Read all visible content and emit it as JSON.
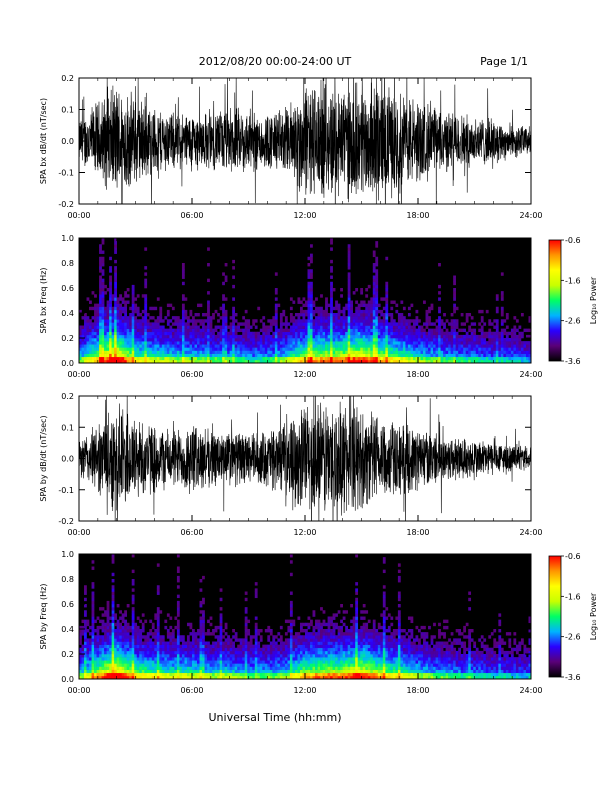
{
  "header": {
    "title": "2012/08/20  00:00-24:00 UT",
    "page_label": "Page 1/1"
  },
  "footer": {
    "xlabel": "Universal Time (hh:mm)"
  },
  "chart_data": [
    {
      "type": "line",
      "ylabel": "SPA bx dB/dt (nT/sec)",
      "xlim": [
        "00:00",
        "24:00"
      ],
      "ylim": [
        -0.2,
        0.2
      ],
      "xticks": [
        "00:00",
        "06:00",
        "12:00",
        "18:00",
        "24:00"
      ],
      "yticks": [
        "-0.2",
        "-0.1",
        "0.0",
        "0.1",
        "0.2"
      ],
      "envelope": {
        "hours": [
          0,
          1,
          2,
          3,
          4,
          5,
          6,
          7,
          8,
          9,
          10,
          11,
          12,
          13,
          14,
          15,
          16,
          17,
          18,
          19,
          20,
          21,
          22,
          23,
          24
        ],
        "amplitude_nT_per_sec": [
          0.08,
          0.14,
          0.2,
          0.16,
          0.12,
          0.1,
          0.1,
          0.1,
          0.12,
          0.11,
          0.1,
          0.12,
          0.2,
          0.2,
          0.2,
          0.2,
          0.2,
          0.18,
          0.15,
          0.12,
          0.1,
          0.09,
          0.08,
          0.06,
          0.05
        ]
      }
    },
    {
      "type": "heatmap",
      "ylabel": "SPA bx Freq (Hz)",
      "xlim": [
        "00:00",
        "24:00"
      ],
      "ylim": [
        0.0,
        1.0
      ],
      "xticks": [
        "00:00",
        "06:00",
        "12:00",
        "18:00",
        "24:00"
      ],
      "yticks": [
        "0.0",
        "0.2",
        "0.4",
        "0.6",
        "0.8",
        "1.0"
      ],
      "colorbar": {
        "label": "Log₁₀ Power",
        "range": [
          -3.6,
          -0.6
        ],
        "ticks": [
          "-0.6",
          "-1.6",
          "-2.6",
          "-3.6"
        ],
        "colors": [
          "#000000",
          "#5a0078",
          "#2a00ff",
          "#00b4ff",
          "#00ff64",
          "#c8ff00",
          "#ffff00",
          "#ff9600",
          "#ff0000"
        ]
      },
      "activity": {
        "hours": [
          0,
          1,
          2,
          3,
          4,
          5,
          6,
          7,
          8,
          9,
          10,
          11,
          12,
          13,
          14,
          15,
          16,
          17,
          18,
          19,
          20,
          21,
          22,
          23,
          24
        ],
        "relative_power": [
          0.45,
          0.7,
          0.95,
          0.6,
          0.55,
          0.5,
          0.5,
          0.45,
          0.45,
          0.4,
          0.4,
          0.5,
          0.7,
          0.75,
          0.75,
          0.85,
          0.7,
          0.6,
          0.5,
          0.45,
          0.4,
          0.4,
          0.35,
          0.35,
          0.3
        ]
      }
    },
    {
      "type": "line",
      "ylabel": "SPA by dB/dt (nT/sec)",
      "xlim": [
        "00:00",
        "24:00"
      ],
      "ylim": [
        -0.2,
        0.2
      ],
      "xticks": [
        "00:00",
        "06:00",
        "12:00",
        "18:00",
        "24:00"
      ],
      "yticks": [
        "-0.2",
        "-0.1",
        "0.0",
        "0.1",
        "0.2"
      ],
      "envelope": {
        "hours": [
          0,
          1,
          2,
          3,
          4,
          5,
          6,
          7,
          8,
          9,
          10,
          11,
          12,
          13,
          14,
          15,
          16,
          17,
          18,
          19,
          20,
          21,
          22,
          23,
          24
        ],
        "amplitude_nT_per_sec": [
          0.07,
          0.12,
          0.2,
          0.15,
          0.12,
          0.1,
          0.12,
          0.1,
          0.1,
          0.09,
          0.1,
          0.12,
          0.2,
          0.2,
          0.2,
          0.18,
          0.15,
          0.13,
          0.11,
          0.09,
          0.08,
          0.07,
          0.06,
          0.05,
          0.04
        ]
      }
    },
    {
      "type": "heatmap",
      "ylabel": "SPA by Freq (Hz)",
      "xlim": [
        "00:00",
        "24:00"
      ],
      "ylim": [
        0.0,
        1.0
      ],
      "xticks": [
        "00:00",
        "06:00",
        "12:00",
        "18:00",
        "24:00"
      ],
      "yticks": [
        "0.0",
        "0.2",
        "0.4",
        "0.6",
        "0.8",
        "1.0"
      ],
      "colorbar": {
        "label": "Log₁₀ Power",
        "range": [
          -3.6,
          -0.6
        ],
        "ticks": [
          "-0.6",
          "-1.6",
          "-2.6",
          "-3.6"
        ],
        "colors": [
          "#000000",
          "#5a0078",
          "#2a00ff",
          "#00b4ff",
          "#00ff64",
          "#c8ff00",
          "#ffff00",
          "#ff9600",
          "#ff0000"
        ]
      },
      "activity": {
        "hours": [
          0,
          1,
          2,
          3,
          4,
          5,
          6,
          7,
          8,
          9,
          10,
          11,
          12,
          13,
          14,
          15,
          16,
          17,
          18,
          19,
          20,
          21,
          22,
          23,
          24
        ],
        "relative_power": [
          0.45,
          0.7,
          0.95,
          0.65,
          0.6,
          0.55,
          0.55,
          0.5,
          0.5,
          0.45,
          0.45,
          0.5,
          0.7,
          0.75,
          0.75,
          0.85,
          0.7,
          0.6,
          0.5,
          0.45,
          0.4,
          0.4,
          0.35,
          0.35,
          0.3
        ]
      }
    }
  ]
}
